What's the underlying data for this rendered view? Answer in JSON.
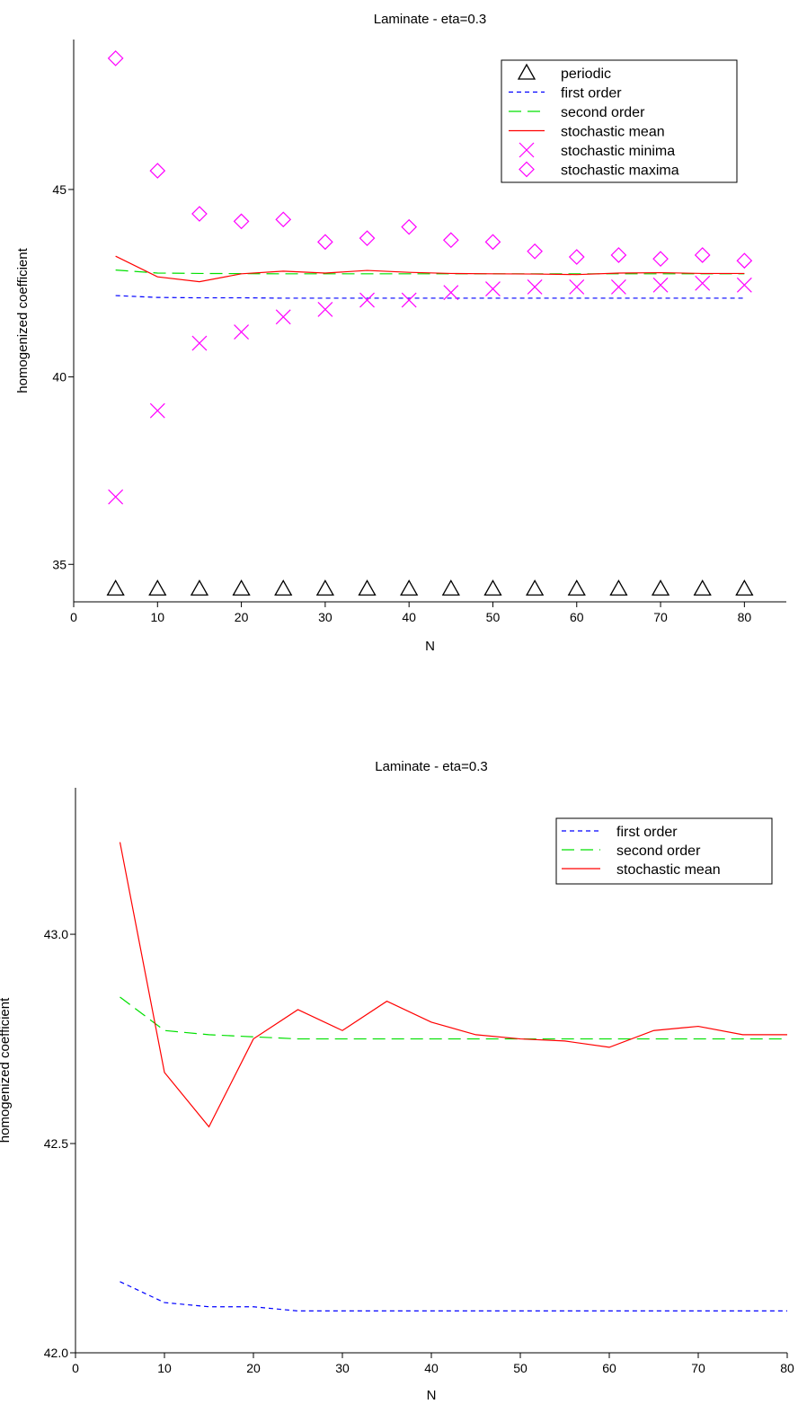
{
  "chart_data": [
    {
      "type": "line",
      "title": "Laminate - eta=0.3",
      "xlabel": "N",
      "ylabel": "homogenized coefficient",
      "xlim": [
        0,
        85
      ],
      "ylim": [
        34,
        49
      ],
      "xticks": [
        0,
        10,
        20,
        30,
        40,
        50,
        60,
        70,
        80
      ],
      "xtick_labels": [
        "0",
        "10",
        "20",
        "30",
        "40",
        "50",
        "60",
        "70",
        "80"
      ],
      "yticks": [
        35,
        40,
        45
      ],
      "ytick_labels": [
        "35",
        "40",
        "45"
      ],
      "grid": false,
      "legend_position": "top-right",
      "series": [
        {
          "name": "periodic",
          "kind": "marker",
          "marker": "triangle",
          "color": "#000000",
          "x": [
            5,
            10,
            15,
            20,
            25,
            30,
            35,
            40,
            45,
            50,
            55,
            60,
            65,
            70,
            75,
            80
          ],
          "y": [
            34.35,
            34.35,
            34.35,
            34.35,
            34.35,
            34.35,
            34.35,
            34.35,
            34.35,
            34.35,
            34.35,
            34.35,
            34.35,
            34.35,
            34.35,
            34.35
          ]
        },
        {
          "name": "first order",
          "kind": "line",
          "dash": "short",
          "color": "#0000ff",
          "x": [
            5,
            10,
            15,
            20,
            25,
            30,
            35,
            40,
            45,
            50,
            55,
            60,
            65,
            70,
            75,
            80
          ],
          "y": [
            42.17,
            42.12,
            42.11,
            42.11,
            42.1,
            42.1,
            42.1,
            42.1,
            42.1,
            42.1,
            42.1,
            42.1,
            42.1,
            42.1,
            42.1,
            42.1
          ]
        },
        {
          "name": "second order",
          "kind": "line",
          "dash": "long",
          "color": "#00e000",
          "x": [
            5,
            10,
            15,
            20,
            25,
            30,
            35,
            40,
            45,
            50,
            55,
            60,
            65,
            70,
            75,
            80
          ],
          "y": [
            42.85,
            42.77,
            42.76,
            42.755,
            42.75,
            42.75,
            42.75,
            42.75,
            42.75,
            42.75,
            42.75,
            42.75,
            42.75,
            42.75,
            42.75,
            42.75
          ]
        },
        {
          "name": "stochastic mean",
          "kind": "line",
          "dash": "solid",
          "color": "#ff0000",
          "x": [
            5,
            10,
            15,
            20,
            25,
            30,
            35,
            40,
            45,
            50,
            55,
            60,
            65,
            70,
            75,
            80
          ],
          "y": [
            43.22,
            42.67,
            42.54,
            42.75,
            42.82,
            42.77,
            42.84,
            42.79,
            42.76,
            42.75,
            42.745,
            42.73,
            42.77,
            42.78,
            42.76,
            42.76
          ]
        },
        {
          "name": "stochastic minima",
          "kind": "marker",
          "marker": "cross",
          "color": "#ff00ff",
          "x": [
            5,
            10,
            15,
            20,
            25,
            30,
            35,
            40,
            45,
            50,
            55,
            60,
            65,
            70,
            75,
            80
          ],
          "y": [
            36.8,
            39.1,
            40.9,
            41.2,
            41.6,
            41.8,
            42.05,
            42.05,
            42.25,
            42.35,
            42.4,
            42.4,
            42.4,
            42.45,
            42.5,
            42.45
          ]
        },
        {
          "name": "stochastic maxima",
          "kind": "marker",
          "marker": "diamond",
          "color": "#ff00ff",
          "x": [
            5,
            10,
            15,
            20,
            25,
            30,
            35,
            40,
            45,
            50,
            55,
            60,
            65,
            70,
            75,
            80
          ],
          "y": [
            48.5,
            45.5,
            44.35,
            44.15,
            44.2,
            43.6,
            43.7,
            44.0,
            43.65,
            43.6,
            43.35,
            43.2,
            43.25,
            43.15,
            43.25,
            43.1
          ]
        }
      ]
    },
    {
      "type": "line",
      "title": "Laminate - eta=0.3",
      "xlabel": "N",
      "ylabel": "homogenized coefficient",
      "xlim": [
        0,
        80
      ],
      "ylim": [
        42.0,
        43.35
      ],
      "xticks": [
        0,
        10,
        20,
        30,
        40,
        50,
        60,
        70,
        80
      ],
      "xtick_labels": [
        "0",
        "10",
        "20",
        "30",
        "40",
        "50",
        "60",
        "70",
        "80"
      ],
      "yticks": [
        42.0,
        42.5,
        43.0
      ],
      "ytick_labels": [
        "42.0",
        "42.5",
        "43.0"
      ],
      "grid": false,
      "legend_position": "top-right",
      "series": [
        {
          "name": "first order",
          "kind": "line",
          "dash": "short",
          "color": "#0000ff",
          "x": [
            5,
            10,
            15,
            20,
            25,
            30,
            35,
            40,
            45,
            50,
            55,
            60,
            65,
            70,
            75,
            80
          ],
          "y": [
            42.17,
            42.12,
            42.11,
            42.11,
            42.1,
            42.1,
            42.1,
            42.1,
            42.1,
            42.1,
            42.1,
            42.1,
            42.1,
            42.1,
            42.1,
            42.1
          ]
        },
        {
          "name": "second order",
          "kind": "line",
          "dash": "long",
          "color": "#00e000",
          "x": [
            5,
            10,
            15,
            20,
            25,
            30,
            35,
            40,
            45,
            50,
            55,
            60,
            65,
            70,
            75,
            80
          ],
          "y": [
            42.85,
            42.77,
            42.76,
            42.755,
            42.75,
            42.75,
            42.75,
            42.75,
            42.75,
            42.75,
            42.75,
            42.75,
            42.75,
            42.75,
            42.75,
            42.75
          ]
        },
        {
          "name": "stochastic mean",
          "kind": "line",
          "dash": "solid",
          "color": "#ff0000",
          "x": [
            5,
            10,
            15,
            20,
            25,
            30,
            35,
            40,
            45,
            50,
            55,
            60,
            65,
            70,
            75,
            80
          ],
          "y": [
            43.22,
            42.67,
            42.54,
            42.75,
            42.82,
            42.77,
            42.84,
            42.79,
            42.76,
            42.75,
            42.745,
            42.73,
            42.77,
            42.78,
            42.76,
            42.76
          ]
        }
      ]
    }
  ]
}
